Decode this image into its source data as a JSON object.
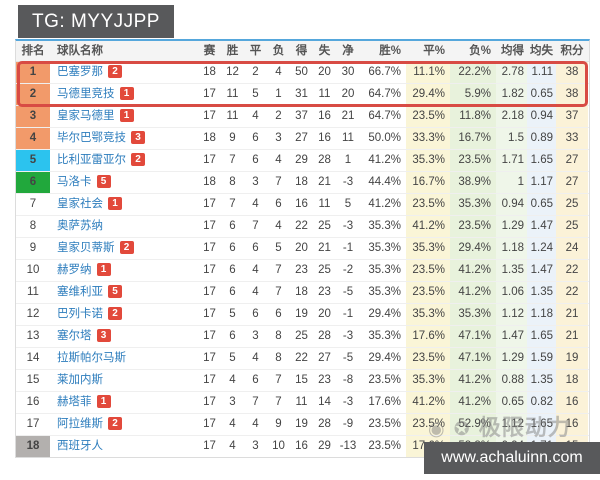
{
  "header_bar": {
    "title": "TG: MYYJJPP"
  },
  "footer_bar": {
    "url": "www.achaluinn.com"
  },
  "watermark": {
    "icon1": "◉",
    "icon2": "✪",
    "text": "极限动力"
  },
  "colors": {
    "bar_bg": "#58595b",
    "table_top_border": "#55a7dc",
    "rank_orange": "#f29a6a",
    "rank_cyan": "#2cc3ee",
    "rank_green": "#21a83c",
    "rank_gray": "#b3b0ae",
    "badge_red": "#e2493b",
    "team_link_blue": "#2d7dbd",
    "highlight_border_red": "#d84b44",
    "draw_pct_col_bg": "#faf5d7",
    "loss_pct_col_bg": "#e8f2dc",
    "avg_for_col_bg": "#eff6e9",
    "avg_against_col_bg": "#ebf2f9",
    "points_col_bg": "#fbf2d8"
  },
  "table": {
    "columns": [
      "排名",
      "球队名称",
      "赛",
      "胜",
      "平",
      "负",
      "得",
      "失",
      "净",
      "胜%",
      "平%",
      "负%",
      "均得",
      "均失",
      "积分"
    ],
    "rows": [
      {
        "rank": "1",
        "rank_style": "orange",
        "team": "巴塞罗那",
        "badge": "2",
        "cells": [
          "18",
          "12",
          "2",
          "4",
          "50",
          "20",
          "30",
          "66.7%",
          "11.1%",
          "22.2%",
          "2.78",
          "1.11",
          "38"
        ],
        "highlight": true
      },
      {
        "rank": "2",
        "rank_style": "orange",
        "team": "马德里竞技",
        "badge": "1",
        "cells": [
          "17",
          "11",
          "5",
          "1",
          "31",
          "11",
          "20",
          "64.7%",
          "29.4%",
          "5.9%",
          "1.82",
          "0.65",
          "38"
        ],
        "highlight": true
      },
      {
        "rank": "3",
        "rank_style": "orange",
        "team": "皇家马德里",
        "badge": "1",
        "cells": [
          "17",
          "11",
          "4",
          "2",
          "37",
          "16",
          "21",
          "64.7%",
          "23.5%",
          "11.8%",
          "2.18",
          "0.94",
          "37"
        ],
        "highlight": false
      },
      {
        "rank": "4",
        "rank_style": "orange",
        "team": "毕尔巴鄂竞技",
        "badge": "3",
        "cells": [
          "18",
          "9",
          "6",
          "3",
          "27",
          "16",
          "11",
          "50.0%",
          "33.3%",
          "16.7%",
          "1.5",
          "0.89",
          "33"
        ],
        "highlight": false
      },
      {
        "rank": "5",
        "rank_style": "cyan",
        "team": "比利亚雷亚尔",
        "badge": "2",
        "cells": [
          "17",
          "7",
          "6",
          "4",
          "29",
          "28",
          "1",
          "41.2%",
          "35.3%",
          "23.5%",
          "1.71",
          "1.65",
          "27"
        ],
        "highlight": false
      },
      {
        "rank": "6",
        "rank_style": "green",
        "team": "马洛卡",
        "badge": "5",
        "cells": [
          "18",
          "8",
          "3",
          "7",
          "18",
          "21",
          "-3",
          "44.4%",
          "16.7%",
          "38.9%",
          "1",
          "1.17",
          "27"
        ],
        "highlight": false
      },
      {
        "rank": "7",
        "rank_style": "",
        "team": "皇家社会",
        "badge": "1",
        "cells": [
          "17",
          "7",
          "4",
          "6",
          "16",
          "11",
          "5",
          "41.2%",
          "23.5%",
          "35.3%",
          "0.94",
          "0.65",
          "25"
        ],
        "highlight": false
      },
      {
        "rank": "8",
        "rank_style": "",
        "team": "奥萨苏纳",
        "badge": "",
        "cells": [
          "17",
          "6",
          "7",
          "4",
          "22",
          "25",
          "-3",
          "35.3%",
          "41.2%",
          "23.5%",
          "1.29",
          "1.47",
          "25"
        ],
        "highlight": false
      },
      {
        "rank": "9",
        "rank_style": "",
        "team": "皇家贝蒂斯",
        "badge": "2",
        "cells": [
          "17",
          "6",
          "6",
          "5",
          "20",
          "21",
          "-1",
          "35.3%",
          "35.3%",
          "29.4%",
          "1.18",
          "1.24",
          "24"
        ],
        "highlight": false
      },
      {
        "rank": "10",
        "rank_style": "",
        "team": "赫罗纳",
        "badge": "1",
        "cells": [
          "17",
          "6",
          "4",
          "7",
          "23",
          "25",
          "-2",
          "35.3%",
          "23.5%",
          "41.2%",
          "1.35",
          "1.47",
          "22"
        ],
        "highlight": false
      },
      {
        "rank": "11",
        "rank_style": "",
        "team": "塞维利亚",
        "badge": "5",
        "cells": [
          "17",
          "6",
          "4",
          "7",
          "18",
          "23",
          "-5",
          "35.3%",
          "23.5%",
          "41.2%",
          "1.06",
          "1.35",
          "22"
        ],
        "highlight": false
      },
      {
        "rank": "12",
        "rank_style": "",
        "team": "巴列卡诺",
        "badge": "2",
        "cells": [
          "17",
          "5",
          "6",
          "6",
          "19",
          "20",
          "-1",
          "29.4%",
          "35.3%",
          "35.3%",
          "1.12",
          "1.18",
          "21"
        ],
        "highlight": false
      },
      {
        "rank": "13",
        "rank_style": "",
        "team": "塞尔塔",
        "badge": "3",
        "cells": [
          "17",
          "6",
          "3",
          "8",
          "25",
          "28",
          "-3",
          "35.3%",
          "17.6%",
          "47.1%",
          "1.47",
          "1.65",
          "21"
        ],
        "highlight": false
      },
      {
        "rank": "14",
        "rank_style": "",
        "team": "拉斯帕尔马斯",
        "badge": "",
        "cells": [
          "17",
          "5",
          "4",
          "8",
          "22",
          "27",
          "-5",
          "29.4%",
          "23.5%",
          "47.1%",
          "1.29",
          "1.59",
          "19"
        ],
        "highlight": false
      },
      {
        "rank": "15",
        "rank_style": "",
        "team": "莱加内斯",
        "badge": "",
        "cells": [
          "17",
          "4",
          "6",
          "7",
          "15",
          "23",
          "-8",
          "23.5%",
          "35.3%",
          "41.2%",
          "0.88",
          "1.35",
          "18"
        ],
        "highlight": false
      },
      {
        "rank": "16",
        "rank_style": "",
        "team": "赫塔菲",
        "badge": "1",
        "cells": [
          "17",
          "3",
          "7",
          "7",
          "11",
          "14",
          "-3",
          "17.6%",
          "41.2%",
          "41.2%",
          "0.65",
          "0.82",
          "16"
        ],
        "highlight": false
      },
      {
        "rank": "17",
        "rank_style": "",
        "team": "阿拉维斯",
        "badge": "2",
        "cells": [
          "17",
          "4",
          "4",
          "9",
          "19",
          "28",
          "-9",
          "23.5%",
          "23.5%",
          "52.9%",
          "1.12",
          "1.65",
          "16"
        ],
        "highlight": false
      },
      {
        "rank": "18",
        "rank_style": "gray",
        "team": "西班牙人",
        "badge": "",
        "cells": [
          "17",
          "4",
          "3",
          "10",
          "16",
          "29",
          "-13",
          "23.5%",
          "17.6%",
          "58.8%",
          "0.94",
          "1.71",
          "15"
        ],
        "highlight": false
      }
    ]
  }
}
